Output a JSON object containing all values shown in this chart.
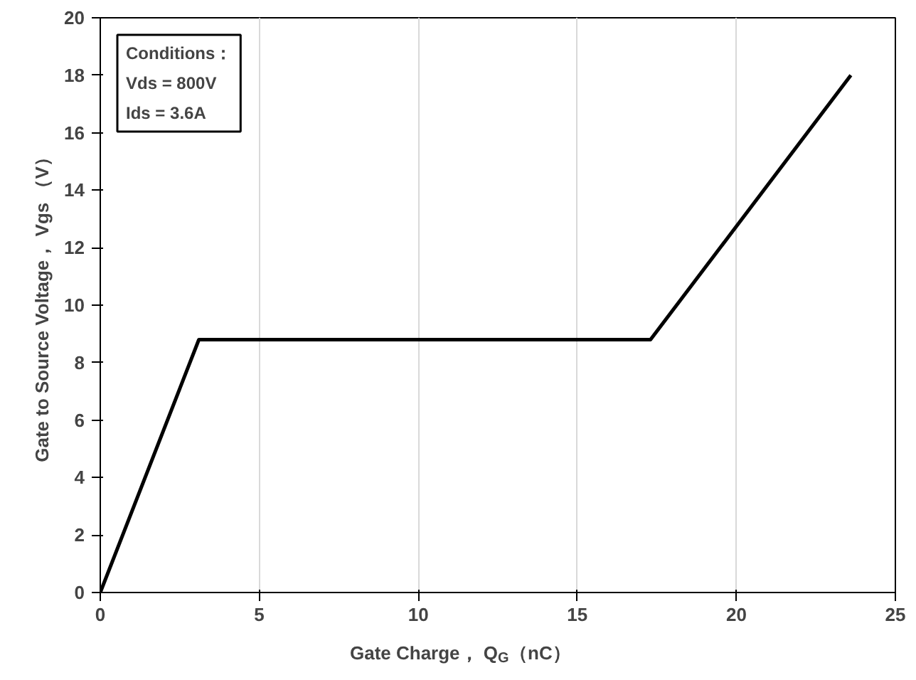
{
  "chart_data": {
    "type": "line",
    "xlabel": "Gate Charge， Q$_{G}$（nC）",
    "ylabel": "Gate to Source Voltage， Vgs （V）",
    "x": [
      0,
      3.1,
      17.3,
      23.6
    ],
    "series": [
      {
        "color": "#000000",
        "values": [
          0,
          8.8,
          8.8,
          18
        ]
      }
    ],
    "xlim": [
      0,
      25
    ],
    "ylim": [
      0,
      20
    ],
    "xticks": [
      0,
      5,
      10,
      15,
      20,
      25
    ],
    "yticks": [
      0,
      2,
      4,
      6,
      8,
      10,
      12,
      14,
      16,
      18,
      20
    ],
    "grid": "x",
    "marker": "none",
    "line_style": "solid",
    "annotations": [
      "Conditions：\nVds = 800V\nIds = 3.6A"
    ]
  }
}
